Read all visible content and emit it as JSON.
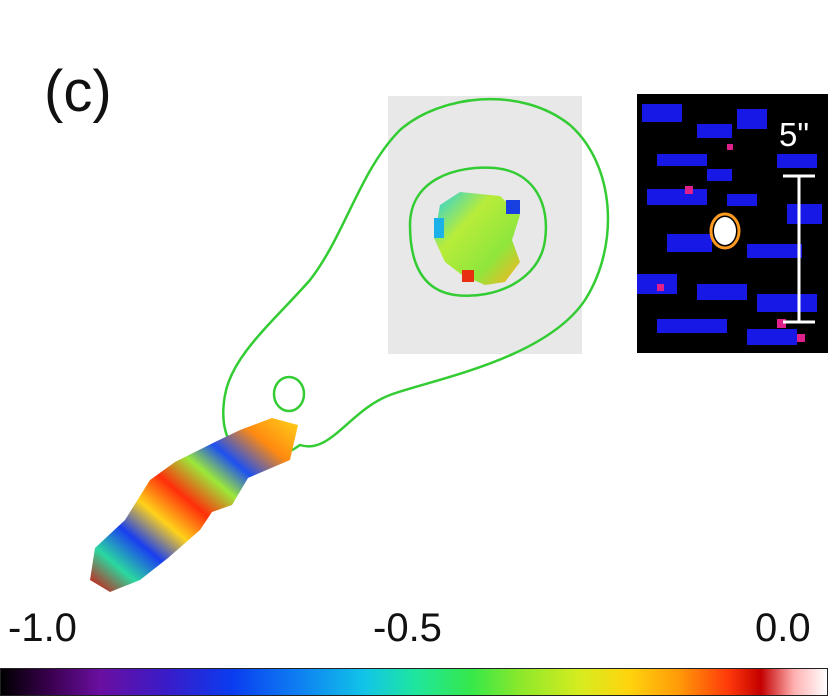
{
  "panel": {
    "label": "(c)"
  },
  "colorbar": {
    "min_label": "-1.0",
    "mid_label": "-0.5",
    "max_label": "0.0",
    "min": -1.0,
    "mid": -0.5,
    "max": 0.0
  },
  "inset": {
    "scale_label": "5\""
  },
  "colors": {
    "contour": "#33cc33",
    "background_box": "#e8e8e8",
    "inset_background": "#000000",
    "inset_noise": "#1a1aff"
  }
}
